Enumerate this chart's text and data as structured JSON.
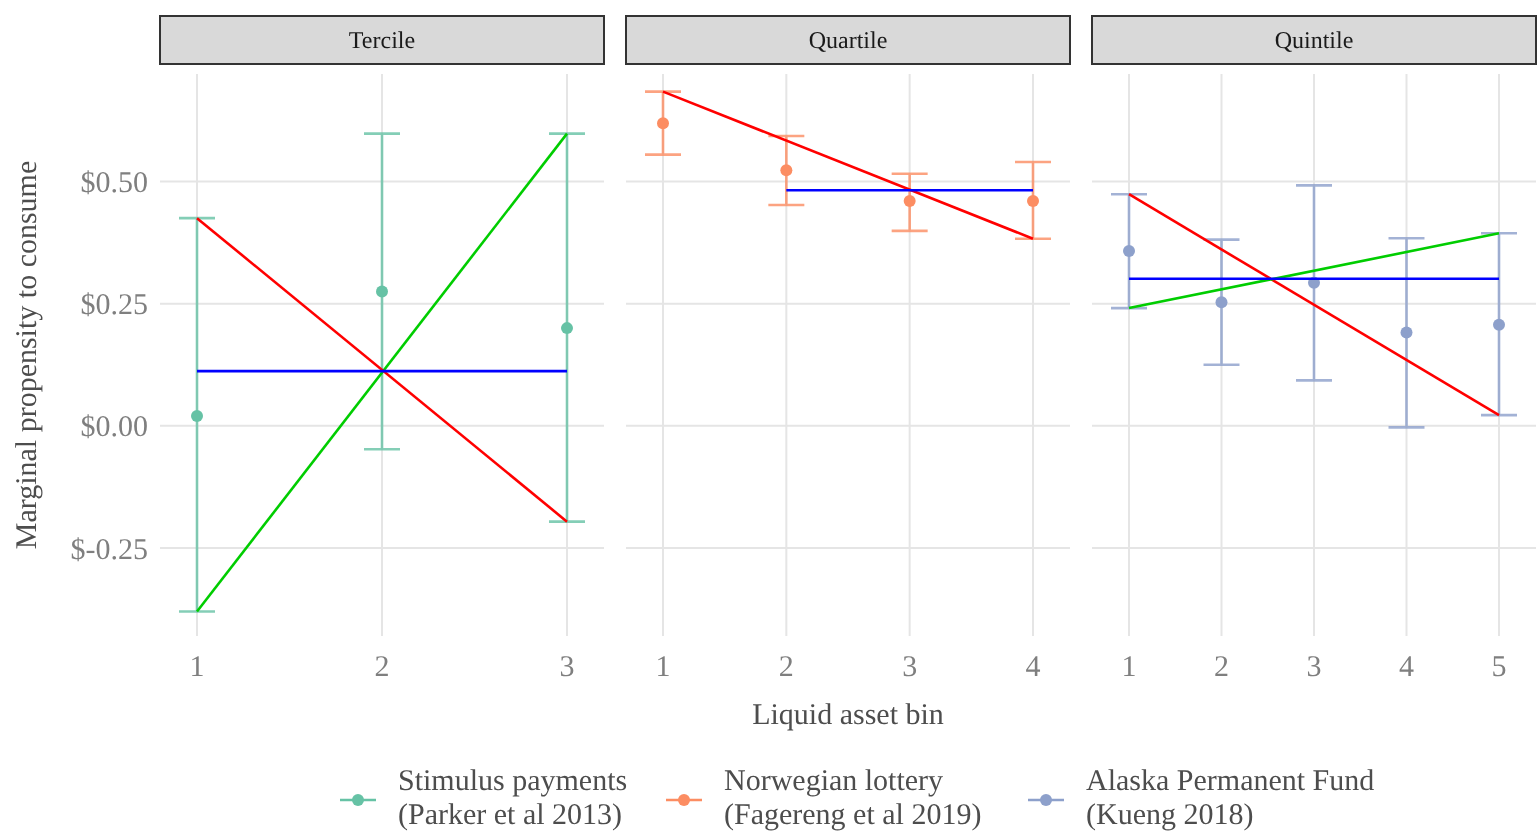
{
  "chart_data": [
    {
      "type": "scatter",
      "title": "Tercile",
      "ylabel": "Marginal propensity to consume",
      "x": [
        1,
        2,
        3
      ],
      "xlim": [
        0.8,
        3.2
      ],
      "xticks": [
        1,
        2,
        3
      ],
      "ylim": [
        -0.43,
        0.72
      ],
      "yticks": [
        {
          "value": -0.25,
          "label": "$-0.25"
        },
        {
          "value": 0,
          "label": "$0.00"
        },
        {
          "value": 0.25,
          "label": "$0.25"
        },
        {
          "value": 0.5,
          "label": "$0.50"
        }
      ],
      "grid": true,
      "legend": "bottom",
      "series": [
        {
          "name": "Stimulus payments\n(Parker et al 2013)",
          "color": "#66c2a5",
          "marker": "circle",
          "values": [
            0.02,
            0.275,
            0.2
          ],
          "errors": [
            [
              -0.38,
              0.425
            ],
            [
              -0.048,
              0.598
            ],
            [
              -0.196,
              0.598
            ]
          ]
        },
        {
          "type": "line",
          "color": "#00cd00",
          "x": [
            1,
            3
          ],
          "values": [
            -0.38,
            0.598
          ]
        },
        {
          "type": "line",
          "color": "#ff0000",
          "x": [
            1,
            3
          ],
          "values": [
            0.425,
            -0.196
          ]
        },
        {
          "type": "line",
          "color": "#0000ff",
          "x": [
            1,
            3
          ],
          "values": [
            0.112,
            0.112
          ]
        }
      ]
    },
    {
      "type": "scatter",
      "title": "Quartile",
      "xlabel": "Liquid asset bin",
      "x": [
        1,
        2,
        3,
        4
      ],
      "xlim": [
        0.7,
        4.3
      ],
      "xticks": [
        1,
        2,
        3,
        4
      ],
      "ylim": [
        -0.43,
        0.72
      ],
      "yticks": [
        {
          "value": -0.25,
          "label": null
        },
        {
          "value": 0,
          "label": null
        },
        {
          "value": 0.25,
          "label": null
        },
        {
          "value": 0.5,
          "label": null
        }
      ],
      "tick_labels": "x",
      "grid": true,
      "legend": "bottom",
      "series": [
        {
          "name": "Norwegian lottery\n(Fagereng et al 2019)",
          "color": "#fc8d62",
          "marker": "circle",
          "values": [
            0.619,
            0.523,
            0.46,
            0.46
          ],
          "errors": [
            [
              0.555,
              0.684
            ],
            [
              0.452,
              0.593
            ],
            [
              0.399,
              0.516
            ],
            [
              0.383,
              0.54
            ]
          ]
        },
        {
          "type": "line",
          "color": "#ff0000",
          "x": [
            1,
            4
          ],
          "values": [
            0.684,
            0.383
          ]
        },
        {
          "type": "line",
          "color": "#0000ff",
          "x": [
            2,
            4
          ],
          "values": [
            0.482,
            0.482
          ]
        }
      ]
    },
    {
      "type": "scatter",
      "title": "Quintile",
      "x": [
        1,
        2,
        3,
        4,
        5
      ],
      "xlim": [
        0.6,
        5.4
      ],
      "xticks": [
        1,
        2,
        3,
        4,
        5
      ],
      "ylim": [
        -0.43,
        0.72
      ],
      "yticks": [
        {
          "value": -0.25,
          "label": null
        },
        {
          "value": 0,
          "label": null
        },
        {
          "value": 0.25,
          "label": null
        },
        {
          "value": 0.5,
          "label": null
        }
      ],
      "tick_labels": "x",
      "grid": true,
      "legend": "bottom",
      "series": [
        {
          "name": "Alaska Permanent Fund\n(Kueng 2018)",
          "color": "#8da0cb",
          "marker": "circle",
          "values": [
            0.358,
            0.253,
            0.293,
            0.191,
            0.207
          ],
          "errors": [
            [
              0.241,
              0.474
            ],
            [
              0.125,
              0.381
            ],
            [
              0.093,
              0.492
            ],
            [
              -0.003,
              0.384
            ],
            [
              0.022,
              0.394
            ]
          ]
        },
        {
          "type": "line",
          "color": "#ff0000",
          "x": [
            1,
            5
          ],
          "values": [
            0.474,
            0.022
          ]
        },
        {
          "type": "line",
          "color": "#00cd00",
          "x": [
            1,
            5
          ],
          "values": [
            0.241,
            0.394
          ]
        },
        {
          "type": "line",
          "color": "#0000ff",
          "x": [
            1,
            5
          ],
          "values": [
            0.301,
            0.301
          ]
        }
      ]
    }
  ]
}
